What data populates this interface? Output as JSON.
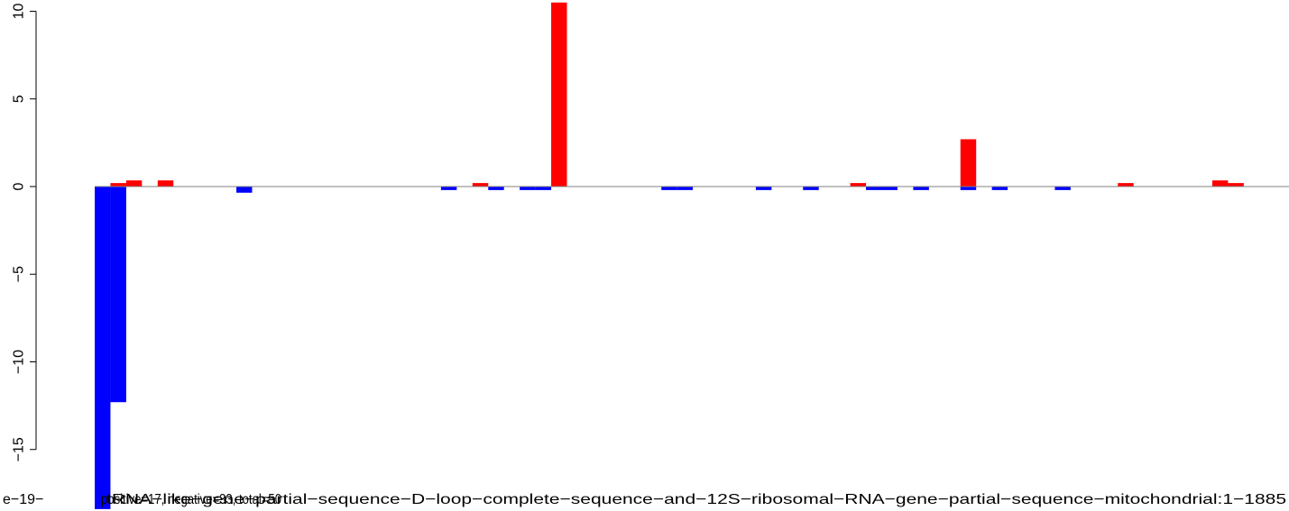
{
  "chart_data": {
    "type": "bar",
    "title": "",
    "xlabel": "",
    "ylabel": "",
    "ylim": [
      -18.5,
      10.5
    ],
    "y_ticks": [
      -15,
      -10,
      -5,
      0,
      5,
      10
    ],
    "y_tick_labels": [
      "−15",
      "−10",
      "−5",
      "0",
      "5",
      "10"
    ],
    "x_labels": [
      "e−19−",
      "positive=17, negative=33, total=50",
      "tRNA−like−gene−partial−sequence−D−loop−complete−sequence−and−12S−ribosomal−RNA−gene−partial−sequence−mitochondrial:1−1885"
    ],
    "colors": {
      "positive": "#ff0000",
      "negative": "#0000ff",
      "axis": "#808080"
    },
    "bars": [
      {
        "i": 0,
        "value": -18.4,
        "color": "negative"
      },
      {
        "i": 1,
        "value": -12.3,
        "color": "negative"
      },
      {
        "i": 1,
        "value": 0.2,
        "color": "positive"
      },
      {
        "i": 2,
        "value": 0.35,
        "color": "positive"
      },
      {
        "i": 4,
        "value": 0.35,
        "color": "positive"
      },
      {
        "i": 9,
        "value": -0.35,
        "color": "negative"
      },
      {
        "i": 22,
        "value": -0.2,
        "color": "negative"
      },
      {
        "i": 24,
        "value": 0.2,
        "color": "positive"
      },
      {
        "i": 25,
        "value": -0.2,
        "color": "negative"
      },
      {
        "i": 27,
        "value": -0.2,
        "color": "negative"
      },
      {
        "i": 28,
        "value": -0.2,
        "color": "negative"
      },
      {
        "i": 29,
        "value": 10.5,
        "color": "positive"
      },
      {
        "i": 36,
        "value": -0.2,
        "color": "negative"
      },
      {
        "i": 37,
        "value": -0.2,
        "color": "negative"
      },
      {
        "i": 42,
        "value": -0.2,
        "color": "negative"
      },
      {
        "i": 45,
        "value": -0.2,
        "color": "negative"
      },
      {
        "i": 48,
        "value": 0.2,
        "color": "positive"
      },
      {
        "i": 49,
        "value": -0.2,
        "color": "negative"
      },
      {
        "i": 50,
        "value": -0.2,
        "color": "negative"
      },
      {
        "i": 52,
        "value": -0.2,
        "color": "negative"
      },
      {
        "i": 55,
        "value": 2.7,
        "color": "positive"
      },
      {
        "i": 55,
        "value": -0.2,
        "color": "negative"
      },
      {
        "i": 57,
        "value": -0.2,
        "color": "negative"
      },
      {
        "i": 61,
        "value": -0.2,
        "color": "negative"
      },
      {
        "i": 65,
        "value": 0.2,
        "color": "positive"
      },
      {
        "i": 71,
        "value": 0.35,
        "color": "positive"
      },
      {
        "i": 72,
        "value": 0.2,
        "color": "positive"
      }
    ]
  }
}
